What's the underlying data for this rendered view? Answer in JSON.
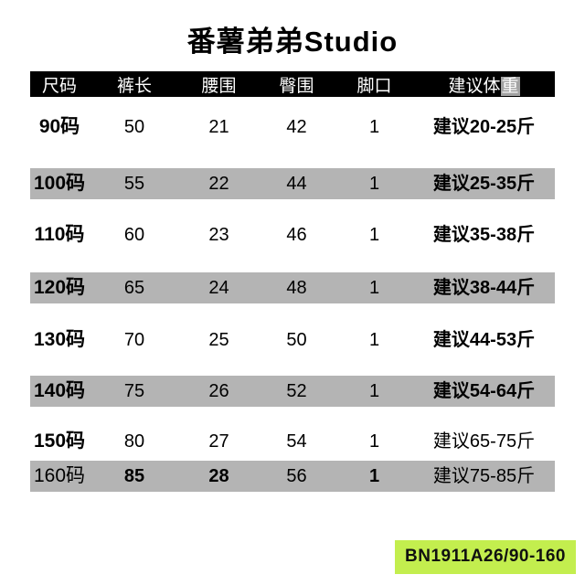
{
  "title": "番薯弟弟Studio",
  "table": {
    "columns": [
      "尺码",
      "裤长",
      "腰围",
      "臀围",
      "脚口",
      "建议体重"
    ],
    "weight_header": {
      "prefix": "建议体",
      "highlight": "重"
    },
    "rows": [
      [
        "90码",
        "50",
        "21",
        "42",
        "1",
        "建议20-25斤"
      ],
      [
        "100码",
        "55",
        "22",
        "44",
        "1",
        "建议25-35斤"
      ],
      [
        "110码",
        "60",
        "23",
        "46",
        "1",
        "建议35-38斤"
      ],
      [
        "120码",
        "65",
        "24",
        "48",
        "1",
        "建议38-44斤"
      ],
      [
        "130码",
        "70",
        "25",
        "50",
        "1",
        "建议44-53斤"
      ],
      [
        "140码",
        "75",
        "26",
        "52",
        "1",
        "建议54-64斤"
      ],
      [
        "150码",
        "80",
        "27",
        "54",
        "1",
        "建议65-75斤"
      ],
      [
        "160码",
        "85",
        "28",
        "56",
        "1",
        "建议75-85斤"
      ]
    ]
  },
  "product_code": "BN1911A26/90-160",
  "colors": {
    "header_bg": "#000000",
    "header_text": "#ffffff",
    "alt_row_bg": "#b4b4b4",
    "code_bg": "#c3ee4e",
    "header_char_highlight_bg": "#a2a2a2"
  }
}
